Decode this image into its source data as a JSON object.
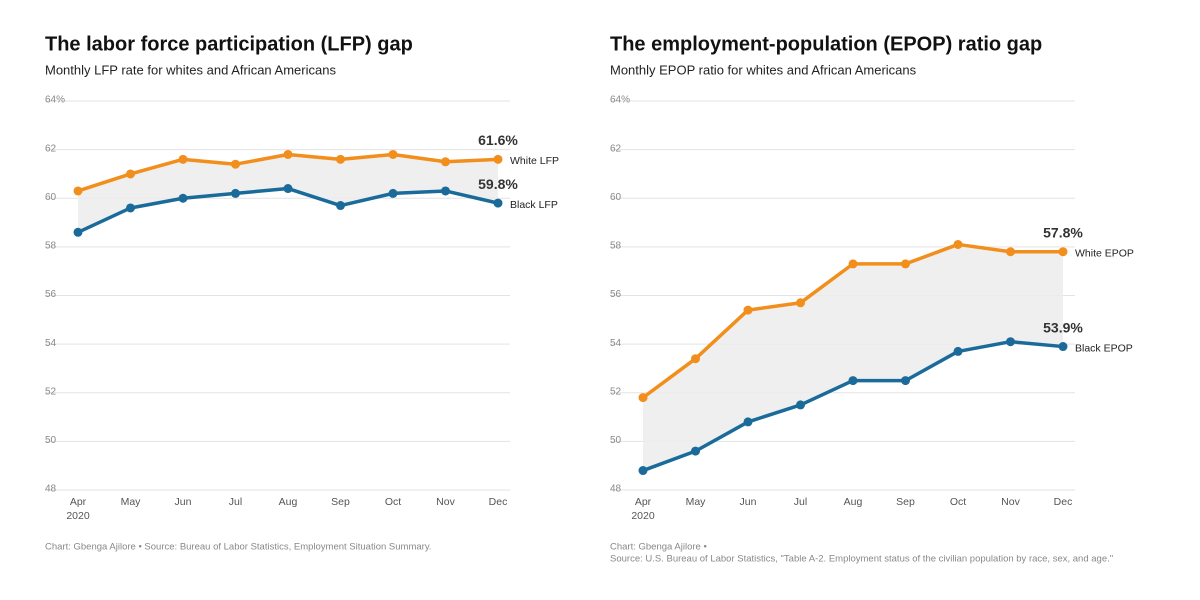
{
  "chart_data": [
    {
      "type": "line",
      "title": "The labor force participation (LFP) gap",
      "subtitle": "Monthly LFP rate for whites and African Americans",
      "categories": [
        "Apr",
        "May",
        "Jun",
        "Jul",
        "Aug",
        "Sep",
        "Oct",
        "Nov",
        "Dec"
      ],
      "year_label": "2020",
      "ylim": [
        48,
        64
      ],
      "yticks": [
        48,
        50,
        52,
        54,
        56,
        58,
        60,
        62,
        {
          "value": 64,
          "label": "64%"
        }
      ],
      "grid": true,
      "series": [
        {
          "name": "White LFP",
          "color": "#f28e1c",
          "values": [
            60.3,
            61.0,
            61.6,
            61.4,
            61.8,
            61.6,
            61.8,
            61.5,
            61.6
          ],
          "value_labels": [
            null,
            null,
            null,
            null,
            null,
            null,
            null,
            null,
            "61.6%"
          ]
        },
        {
          "name": "Black LFP",
          "color": "#1a6b9a",
          "values": [
            58.6,
            59.6,
            60.0,
            60.2,
            60.4,
            59.7,
            60.2,
            60.3,
            59.8
          ],
          "value_labels": [
            null,
            null,
            null,
            null,
            null,
            null,
            null,
            null,
            "59.8%"
          ]
        }
      ],
      "notes": [
        "Chart: Gbenga Ajilore • Source: Bureau of Labor Statistics, Employment Situation Summary."
      ]
    },
    {
      "type": "line",
      "title": "The employment-population (EPOP) ratio gap",
      "subtitle": "Monthly EPOP ratio for whites and African Americans",
      "categories": [
        "Apr",
        "May",
        "Jun",
        "Jul",
        "Aug",
        "Sep",
        "Oct",
        "Nov",
        "Dec"
      ],
      "year_label": "2020",
      "ylim": [
        48,
        64
      ],
      "yticks": [
        48,
        50,
        52,
        54,
        56,
        58,
        60,
        62,
        {
          "value": 64,
          "label": "64%"
        }
      ],
      "grid": true,
      "series": [
        {
          "name": "White EPOP",
          "color": "#f28e1c",
          "values": [
            51.8,
            53.4,
            55.4,
            55.7,
            57.3,
            57.3,
            58.1,
            57.8,
            57.8
          ],
          "value_labels": [
            null,
            null,
            null,
            null,
            null,
            null,
            null,
            null,
            "57.8%"
          ]
        },
        {
          "name": "Black EPOP",
          "color": "#1a6b9a",
          "values": [
            48.8,
            49.6,
            50.8,
            51.5,
            52.5,
            52.5,
            53.7,
            54.1,
            53.9
          ],
          "value_labels": [
            null,
            null,
            null,
            null,
            null,
            null,
            null,
            null,
            "53.9%"
          ]
        }
      ],
      "notes": [
        "Chart: Gbenga Ajilore •",
        "Source: U.S. Bureau of Labor Statistics, \"Table A-2. Employment status of the civilian population by race, sex, and age.\""
      ]
    }
  ]
}
